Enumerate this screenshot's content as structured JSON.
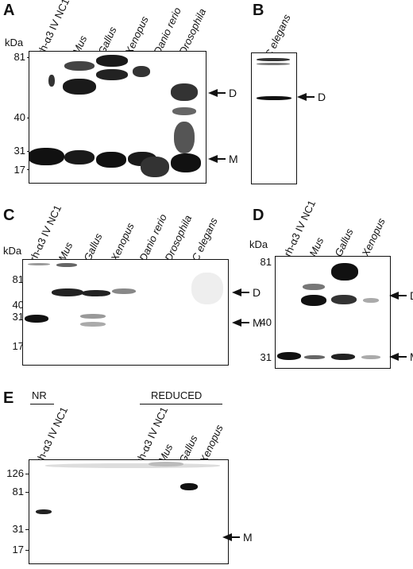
{
  "panels": {
    "A": {
      "letter": "A",
      "kda": "kDa",
      "ticks": [
        "81",
        "40",
        "31",
        "17"
      ],
      "lanes": [
        "rh-α3 IV NC1",
        "Mus",
        "Gallus",
        "Xenopus",
        "Danio rerio",
        "Drosophila"
      ],
      "markers": [
        "D",
        "M"
      ]
    },
    "B": {
      "letter": "B",
      "lanes": [
        "C elegans"
      ],
      "markers": [
        "D"
      ]
    },
    "C": {
      "letter": "C",
      "kda": "kDa",
      "ticks": [
        "81",
        "40",
        "31",
        "17"
      ],
      "lanes": [
        "rh-α3 IV NC1",
        "Mus",
        "Gallus",
        "Xenopus",
        "Danio rerio",
        "Drosophila",
        "C elegans"
      ],
      "markers": [
        "D",
        "M"
      ]
    },
    "D": {
      "letter": "D",
      "kda": "kDa",
      "ticks": [
        "81",
        "40",
        "31"
      ],
      "lanes": [
        "rh-α3 IV NC1",
        "Mus",
        "Gallus",
        "Xenopus"
      ],
      "markers": [
        "D",
        "M"
      ]
    },
    "E": {
      "letter": "E",
      "header_nr": "NR",
      "header_reduced": "REDUCED",
      "ticks": [
        "126",
        "81",
        "31",
        "17"
      ],
      "lanes": [
        "rh-α3 IV NC1",
        "rh-α3 IV NC1",
        "Mus",
        "Gallus",
        "Xenopus"
      ],
      "markers": [
        "M"
      ]
    }
  },
  "colors": {
    "ink": "#111111",
    "band": "#1a1a1a",
    "background": "#ffffff"
  }
}
